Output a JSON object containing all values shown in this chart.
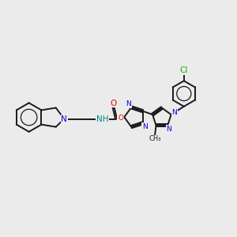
{
  "bg_color": "#ebebeb",
  "figsize": [
    3.0,
    3.0
  ],
  "dpi": 100,
  "bond_color": "#1a1a1a",
  "bond_width": 1.4,
  "atom_colors": {
    "N": "#0000ee",
    "O": "#ee0000",
    "Cl": "#00bb00",
    "C": "#1a1a1a",
    "NH": "#008888"
  },
  "font_size": 7.5,
  "font_size_small": 6.5,
  "xlim": [
    0,
    10
  ],
  "ylim": [
    2,
    8
  ]
}
